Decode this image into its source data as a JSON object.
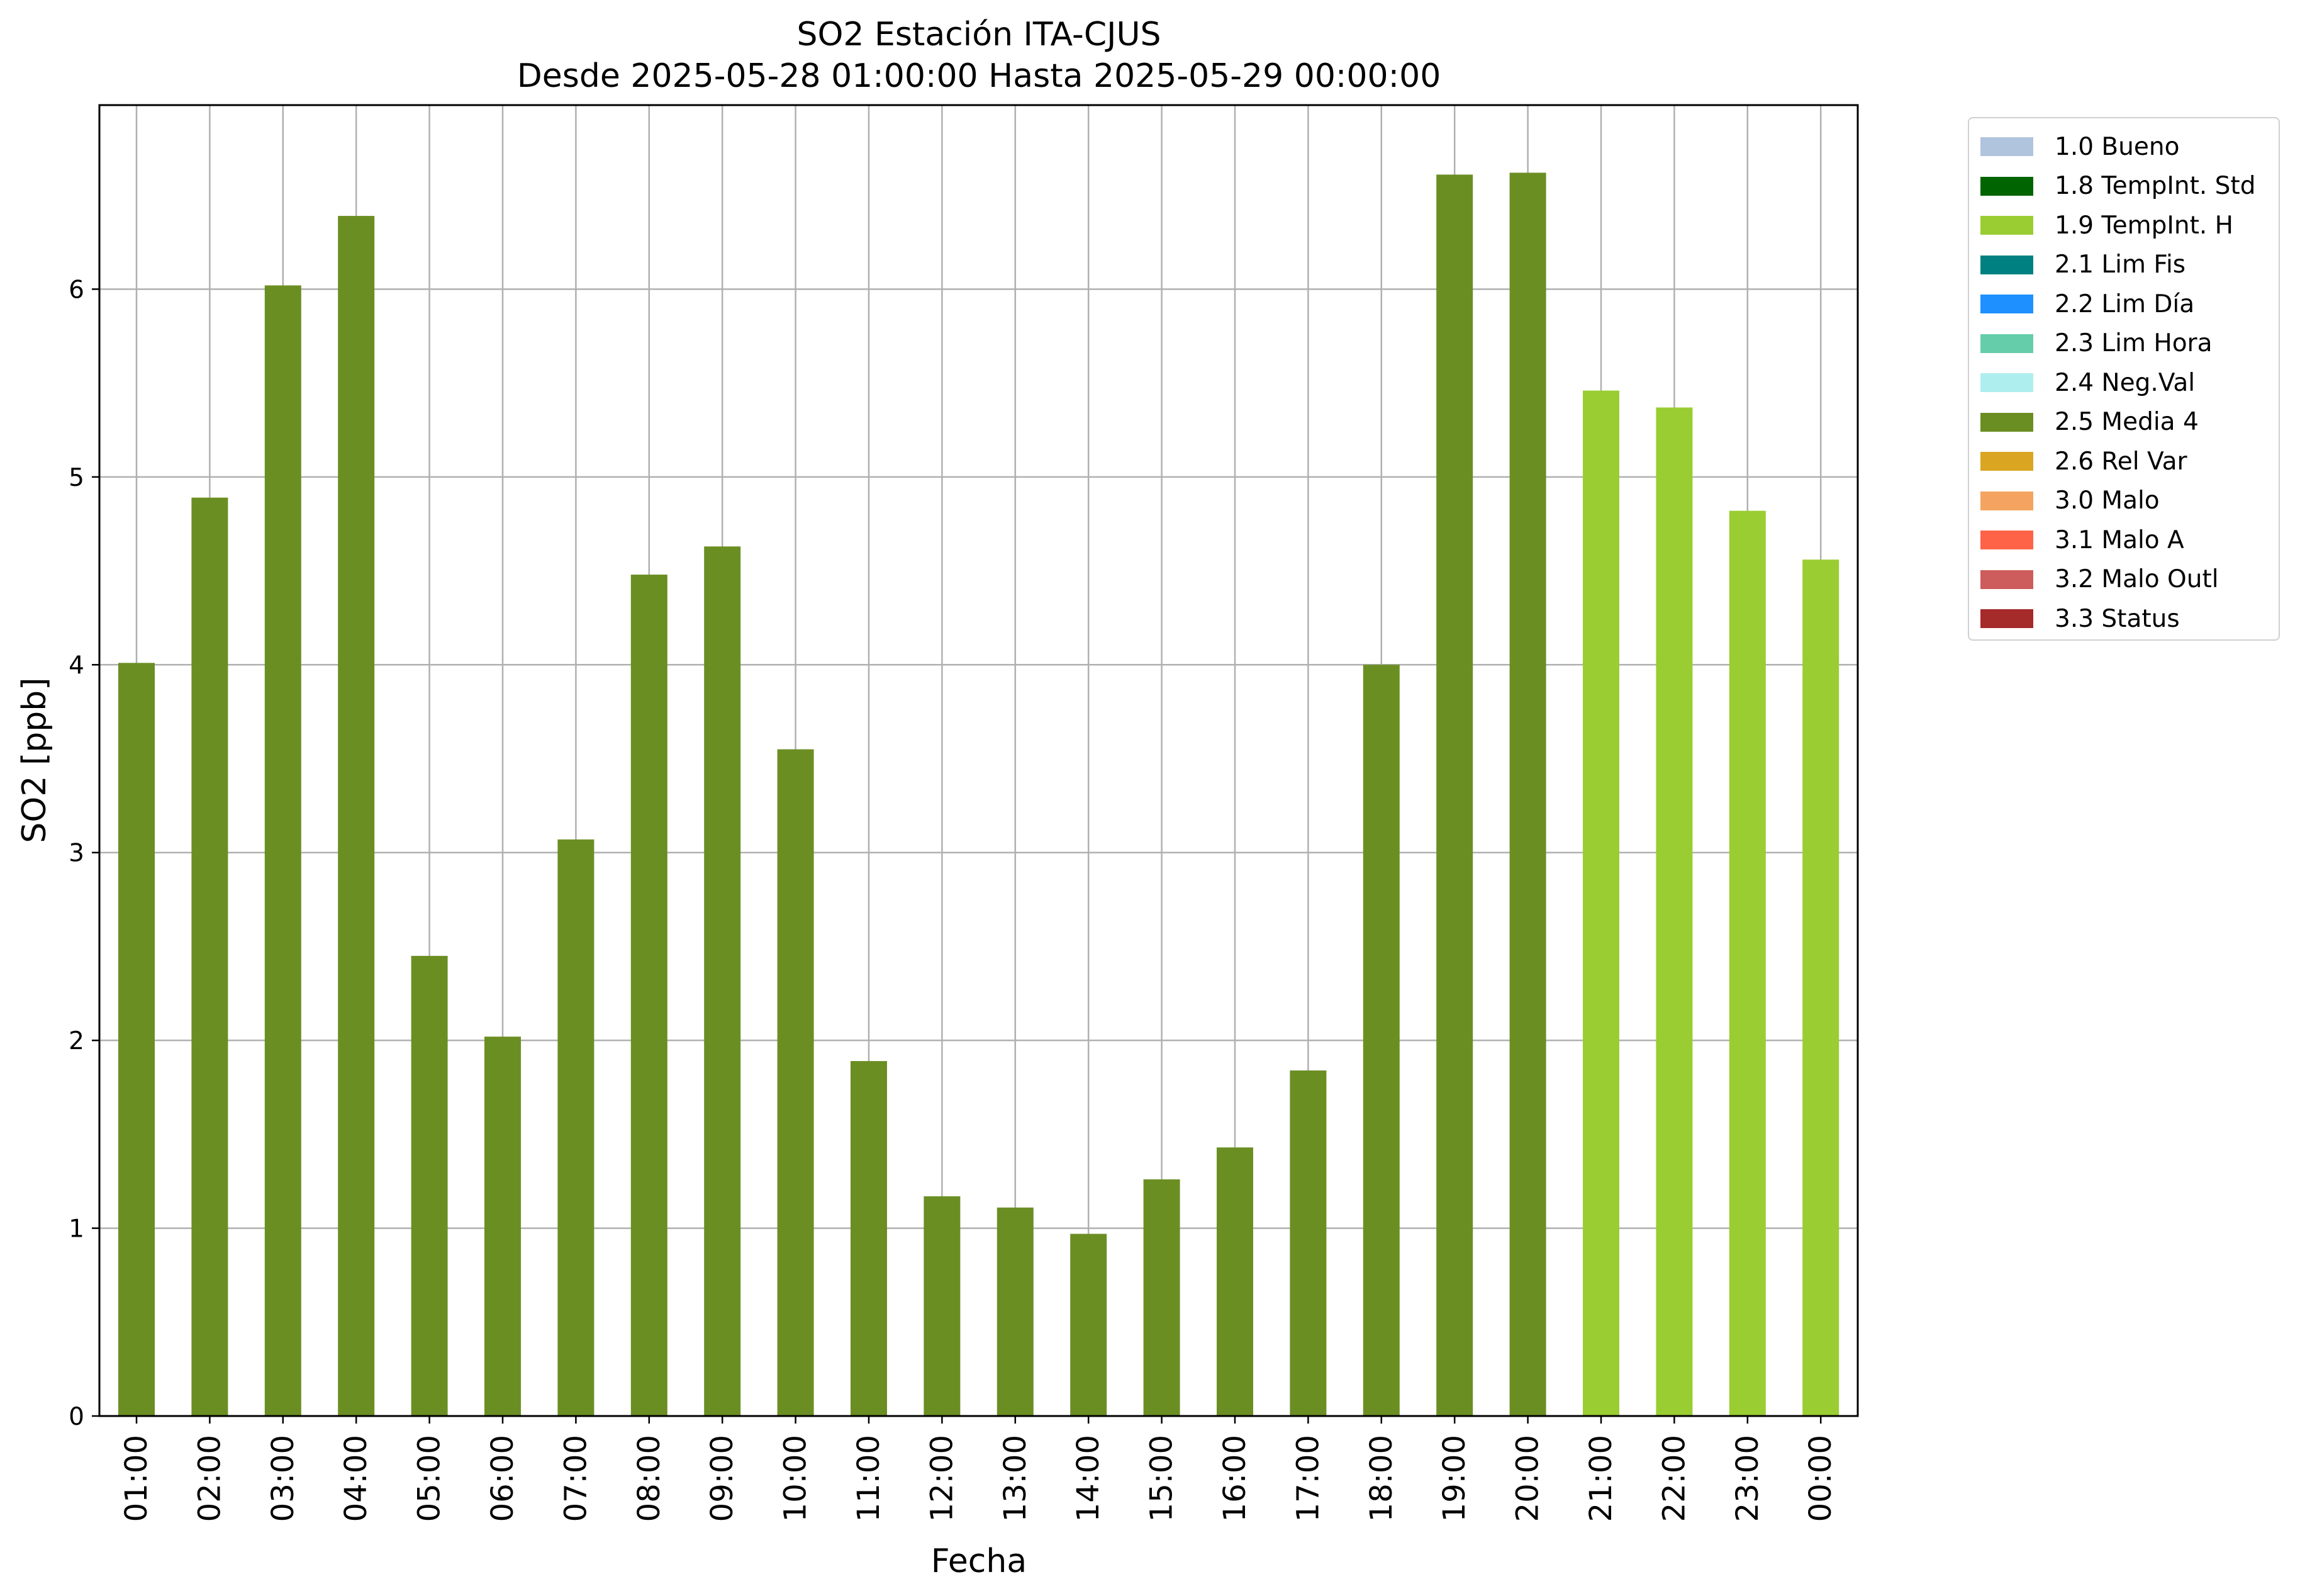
{
  "chart_data": {
    "type": "bar",
    "title": "SO2 Estación ITA-CJUS",
    "subtitle": "Desde 2025-05-28 01:00:00 Hasta 2025-05-29 00:00:00",
    "xlabel": "Fecha",
    "ylabel": "SO2 [ppb]",
    "ylim": [
      0,
      6.98
    ],
    "yticks": [
      0,
      1,
      2,
      3,
      4,
      5,
      6
    ],
    "grid": true,
    "legend_position": "outside-right",
    "categories": [
      "01:00",
      "02:00",
      "03:00",
      "04:00",
      "05:00",
      "06:00",
      "07:00",
      "08:00",
      "09:00",
      "10:00",
      "11:00",
      "12:00",
      "13:00",
      "14:00",
      "15:00",
      "16:00",
      "17:00",
      "18:00",
      "19:00",
      "20:00",
      "21:00",
      "22:00",
      "23:00",
      "00:00"
    ],
    "values": [
      4.01,
      4.89,
      6.02,
      6.39,
      2.45,
      2.02,
      3.07,
      4.48,
      4.63,
      3.55,
      1.89,
      1.17,
      1.11,
      0.97,
      1.26,
      1.43,
      1.84,
      4.0,
      6.61,
      6.62,
      5.46,
      5.37,
      4.82,
      4.56
    ],
    "flags": [
      "2.5 Media 4",
      "2.5 Media 4",
      "2.5 Media 4",
      "2.5 Media 4",
      "2.5 Media 4",
      "2.5 Media 4",
      "2.5 Media 4",
      "2.5 Media 4",
      "2.5 Media 4",
      "2.5 Media 4",
      "2.5 Media 4",
      "2.5 Media 4",
      "2.5 Media 4",
      "2.5 Media 4",
      "2.5 Media 4",
      "2.5 Media 4",
      "2.5 Media 4",
      "2.5 Media 4",
      "2.5 Media 4",
      "2.5 Media 4",
      "1.9 TempInt. H",
      "1.9 TempInt. H",
      "1.9 TempInt. H",
      "1.9 TempInt. H"
    ],
    "legend": [
      {
        "label": "1.0 Bueno",
        "color": "#b0c4de"
      },
      {
        "label": "1.8 TempInt. Std",
        "color": "#006400"
      },
      {
        "label": "1.9 TempInt. H",
        "color": "#9acd32"
      },
      {
        "label": "2.1 Lim Fis",
        "color": "#008080"
      },
      {
        "label": "2.2 Lim Día",
        "color": "#1e90ff"
      },
      {
        "label": "2.3 Lim Hora",
        "color": "#66cdaa"
      },
      {
        "label": "2.4 Neg.Val",
        "color": "#afeeee"
      },
      {
        "label": "2.5 Media 4",
        "color": "#6b8e23"
      },
      {
        "label": "2.6 Rel Var",
        "color": "#daa520"
      },
      {
        "label": "3.0 Malo",
        "color": "#f4a460"
      },
      {
        "label": "3.1 Malo A",
        "color": "#ff6347"
      },
      {
        "label": "3.2 Malo Outl",
        "color": "#cd5c5c"
      },
      {
        "label": "3.3 Status",
        "color": "#a52a2a"
      }
    ]
  }
}
